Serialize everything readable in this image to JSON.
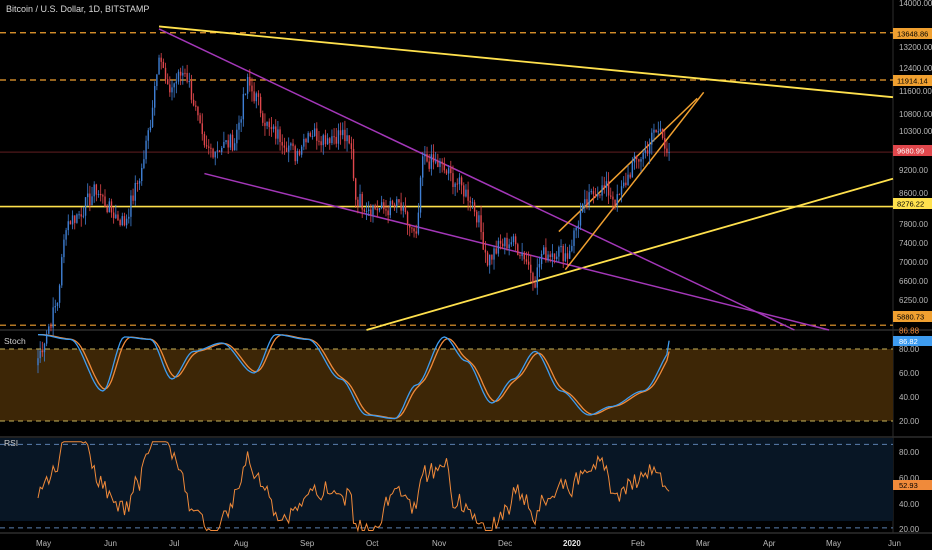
{
  "title": "Bitcoin / U.S. Dollar, 1D, BITSTAMP",
  "colors": {
    "background": "#000000",
    "bull": "#3f7fd4",
    "bear": "#e0474c",
    "yellow": "#ffe14d",
    "orange": "#f0a030",
    "purple": "#a337b8",
    "stochK": "#3e9cf0",
    "stochD": "#f08a3a",
    "rsi": "#f08a3a",
    "stochBand": "#3d2606",
    "rsiBand": "#081625"
  },
  "x_labels": [
    "May",
    "Jun",
    "Jul",
    "Aug",
    "Sep",
    "Oct",
    "Nov",
    "Dec",
    "2020",
    "Feb",
    "Mar",
    "Apr",
    "May",
    "Jun"
  ],
  "price_axis_labels": [
    "14000.00",
    "13200.00",
    "12400.00",
    "11600.00",
    "10800.00",
    "10300.00",
    "9200.00",
    "8600.00",
    "7800.00",
    "7400.00",
    "7000.00",
    "6600.00",
    "6250.00"
  ],
  "price_badges": [
    "13648.86",
    "11914.14",
    "9680.99",
    "8276.22",
    "5880.73"
  ],
  "stoch": {
    "label": "Stoch",
    "values": [
      "86.88",
      "86.82"
    ],
    "axis_labels": [
      "80.00",
      "60.00",
      "40.00",
      "20.00"
    ]
  },
  "rsi": {
    "label": "RSI",
    "value": "52.93",
    "axis_labels": [
      "80.00",
      "60.00",
      "40.00",
      "20.00"
    ]
  },
  "chart_data": {
    "type": "candlestick",
    "symbol": "BTCUSD",
    "timeframe": "1D",
    "exchange": "BITSTAMP",
    "y_scale": "log",
    "ylim": [
      5800,
      15000
    ],
    "close_path": [
      [
        "2019-05-01",
        5350
      ],
      [
        "2019-05-10",
        6300
      ],
      [
        "2019-05-14",
        7900
      ],
      [
        "2019-05-20",
        8100
      ],
      [
        "2019-05-28",
        8700
      ],
      [
        "2019-06-03",
        8200
      ],
      [
        "2019-06-10",
        7900
      ],
      [
        "2019-06-18",
        9200
      ],
      [
        "2019-06-22",
        10600
      ],
      [
        "2019-06-26",
        13000
      ],
      [
        "2019-06-30",
        11500
      ],
      [
        "2019-07-03",
        11800
      ],
      [
        "2019-07-08",
        12300
      ],
      [
        "2019-07-12",
        11200
      ],
      [
        "2019-07-17",
        9700
      ],
      [
        "2019-07-23",
        9800
      ],
      [
        "2019-07-31",
        10000
      ],
      [
        "2019-08-06",
        11800
      ],
      [
        "2019-08-10",
        11300
      ],
      [
        "2019-08-16",
        10300
      ],
      [
        "2019-08-22",
        10100
      ],
      [
        "2019-08-28",
        9600
      ],
      [
        "2019-09-03",
        10300
      ],
      [
        "2019-09-10",
        10100
      ],
      [
        "2019-09-19",
        10200
      ],
      [
        "2019-09-23",
        9700
      ],
      [
        "2019-09-25",
        8500
      ],
      [
        "2019-09-30",
        8300
      ],
      [
        "2019-10-08",
        8200
      ],
      [
        "2019-10-15",
        8300
      ],
      [
        "2019-10-23",
        7500
      ],
      [
        "2019-10-26",
        9500
      ],
      [
        "2019-11-03",
        9300
      ],
      [
        "2019-11-10",
        8900
      ],
      [
        "2019-11-17",
        8500
      ],
      [
        "2019-11-20",
        8100
      ],
      [
        "2019-11-25",
        7100
      ],
      [
        "2019-12-01",
        7400
      ],
      [
        "2019-12-06",
        7500
      ],
      [
        "2019-12-12",
        7200
      ],
      [
        "2019-12-17",
        6700
      ],
      [
        "2019-12-20",
        7200
      ],
      [
        "2019-12-27",
        7300
      ],
      [
        "2020-01-01",
        7200
      ],
      [
        "2020-01-07",
        8100
      ],
      [
        "2020-01-14",
        8700
      ],
      [
        "2020-01-19",
        8700
      ],
      [
        "2020-01-24",
        8400
      ],
      [
        "2020-01-31",
        9300
      ],
      [
        "2020-02-06",
        9700
      ],
      [
        "2020-02-10",
        10200
      ],
      [
        "2020-02-13",
        10300
      ],
      [
        "2020-02-17",
        9681
      ]
    ],
    "horizontal_levels": [
      {
        "price": 13648.86,
        "style": "dashed",
        "color": "orange"
      },
      {
        "price": 11914.14,
        "style": "dashed",
        "color": "orange"
      },
      {
        "price": 8276.22,
        "style": "solid",
        "color": "yellow"
      },
      {
        "price": 5880.73,
        "style": "dashed",
        "color": "orange"
      }
    ],
    "last_price": 9680.99,
    "trendlines": [
      {
        "color": "yellow",
        "from": [
          "2019-06-26",
          13900
        ],
        "to": [
          "2020-06-20",
          11200
        ]
      },
      {
        "color": "yellow",
        "from": [
          "2019-09-30",
          5800
        ],
        "to": [
          "2020-06-20",
          9300
        ]
      },
      {
        "color": "purple",
        "from": [
          "2019-06-26",
          13800
        ],
        "to": [
          "2020-04-15",
          5800
        ]
      },
      {
        "color": "purple",
        "from": [
          "2019-07-17",
          9100
        ],
        "to": [
          "2020-05-01",
          5800
        ]
      },
      {
        "color": "orange",
        "from": [
          "2019-12-28",
          7700
        ],
        "to": [
          "2020-03-01",
          11300
        ]
      },
      {
        "color": "orange",
        "from": [
          "2019-12-31",
          6900
        ],
        "to": [
          "2020-03-04",
          11500
        ]
      }
    ],
    "stoch": {
      "k": 86.88,
      "d": 86.82,
      "bands": [
        80,
        20
      ]
    },
    "rsi": {
      "value": 52.93,
      "bands": [
        70,
        30
      ]
    }
  }
}
